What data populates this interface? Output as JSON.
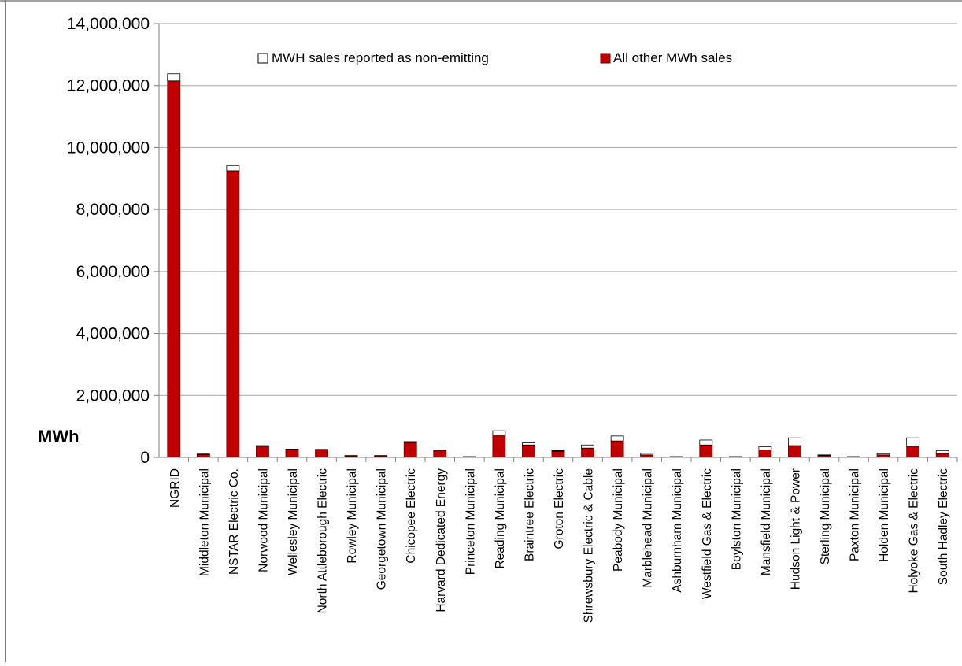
{
  "colors": {
    "bar_other": "#c00000",
    "bar_other_edge": "#5a0000",
    "bar_nonemitting": "#ffffff",
    "gridline": "#a6a6a6",
    "axis": "#7f7f7f",
    "text": "#000000"
  },
  "chart_data": {
    "type": "bar",
    "stacked": true,
    "title": "",
    "xlabel": "",
    "ylabel": "MWh",
    "ylim": [
      0,
      14000000
    ],
    "yticks": [
      0,
      2000000,
      4000000,
      6000000,
      8000000,
      10000000,
      12000000,
      14000000
    ],
    "ytick_labels": [
      "0",
      "2,000,000",
      "4,000,000",
      "6,000,000",
      "8,000,000",
      "10,000,000",
      "12,000,000",
      "14,000,000"
    ],
    "grid": true,
    "legend_position": "top-center",
    "categories": [
      "NGRID",
      "Middleton Municipal",
      "NSTAR Electric Co.",
      "Norwood Municipal",
      "Wellesley Municipal",
      "North Attleborough Electric",
      "Rowley Municipal",
      "Georgetown Municipal",
      "Chicopee Electric",
      "Harvard Dedicated Energy",
      "Princeton Municipal",
      "Reading Municipal",
      "Braintree Electric",
      "Groton Electric",
      "Shrewsbury Electric & Cable",
      "Peabody Municipal",
      "Marblehead Municipal",
      "Ashburnham Municipal",
      "Westfield Gas & Electric",
      "Boylston Municipal",
      "Mansfield Municipal",
      "Hudson Light & Power",
      "Sterling Municipal",
      "Paxton Municipal",
      "Holden Municipal",
      "Holyoke Gas & Electric",
      "South Hadley Electric"
    ],
    "series": [
      {
        "name": "All other MWh sales",
        "color": "#c00000",
        "values": [
          12150000,
          90000,
          9250000,
          360000,
          260000,
          250000,
          50000,
          50000,
          480000,
          230000,
          20000,
          720000,
          400000,
          200000,
          300000,
          530000,
          80000,
          20000,
          400000,
          20000,
          240000,
          380000,
          60000,
          20000,
          80000,
          360000,
          130000
        ]
      },
      {
        "name": "MWH sales reported as non-emitting",
        "color": "#ffffff",
        "values": [
          230000,
          20000,
          170000,
          20000,
          10000,
          10000,
          10000,
          10000,
          30000,
          10000,
          5000,
          140000,
          70000,
          20000,
          100000,
          160000,
          50000,
          5000,
          160000,
          5000,
          100000,
          250000,
          20000,
          5000,
          40000,
          270000,
          90000
        ]
      }
    ]
  },
  "legend": {
    "nonemitting_label": "MWH sales reported as non-emitting",
    "other_label": "All other MWh sales"
  },
  "axis": {
    "ylabel": "MWh"
  }
}
